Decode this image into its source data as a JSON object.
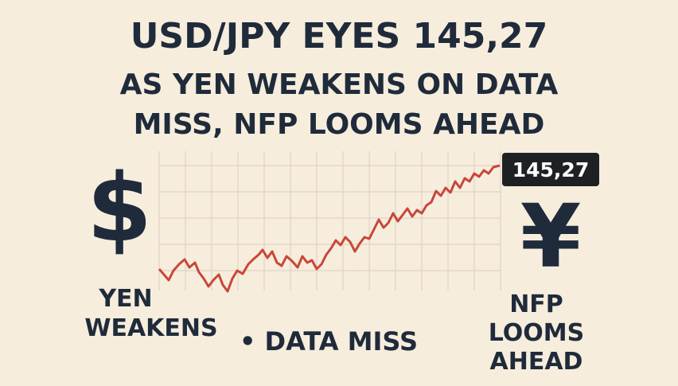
{
  "title": {
    "lines": [
      "USD/JPY EYES 145,27",
      "AS YEN WEAKENS ON DATA",
      "MISS, NFP LOOMS AHEAD"
    ]
  },
  "symbols": {
    "dollar": "$",
    "yen": "¥"
  },
  "price_label": "145,27",
  "captions": {
    "yen_weakens": [
      "YEN",
      "WEAKENS"
    ],
    "data_miss": "• DATA MISS",
    "nfp": [
      "NFP",
      "LOOMS",
      "AHEAD"
    ]
  }
}
